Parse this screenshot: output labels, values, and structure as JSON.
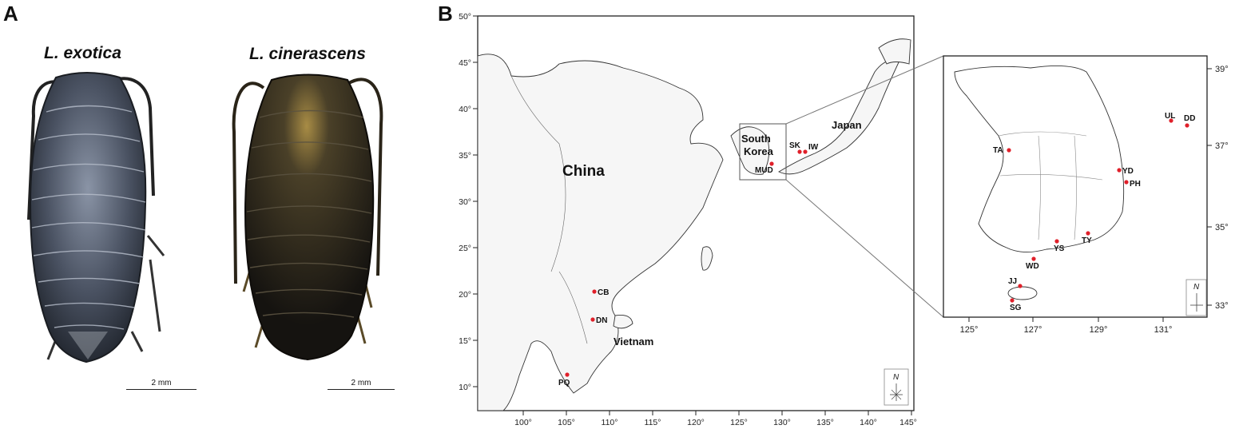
{
  "panel_a": {
    "label": "A",
    "specimens": [
      {
        "name": "L. exotica",
        "scale_label": "2 mm",
        "body_color": "#3d4552"
      },
      {
        "name": "L. cinerascens",
        "scale_label": "2 mm",
        "body_color": "#26221a"
      }
    ]
  },
  "panel_b": {
    "label": "B",
    "main_map": {
      "lat_ticks": [
        "50°",
        "45°",
        "40°",
        "35°",
        "30°",
        "25°",
        "20°",
        "15°",
        "10°"
      ],
      "lon_ticks": [
        "100°",
        "105°",
        "110°",
        "115°",
        "120°",
        "125°",
        "130°",
        "135°",
        "140°",
        "145°"
      ],
      "region_labels": [
        "China",
        "South Korea",
        "Japan",
        "Vietnam"
      ],
      "south_korea_line1": "South",
      "south_korea_line2": "Korea",
      "sites": [
        "CB",
        "DN",
        "PQ",
        "MUD",
        "SK",
        "IW"
      ],
      "north_label": "N"
    },
    "inset_map": {
      "lat_ticks": [
        "39°",
        "37°",
        "35°",
        "33°"
      ],
      "lon_ticks": [
        "125°",
        "127°",
        "129°",
        "131°"
      ],
      "sites": [
        "UL",
        "DD",
        "TA",
        "YD",
        "PH",
        "YS",
        "TY",
        "WD",
        "JJ",
        "SG"
      ],
      "north_label": "N"
    },
    "site_marker_color": "#e0202a"
  }
}
